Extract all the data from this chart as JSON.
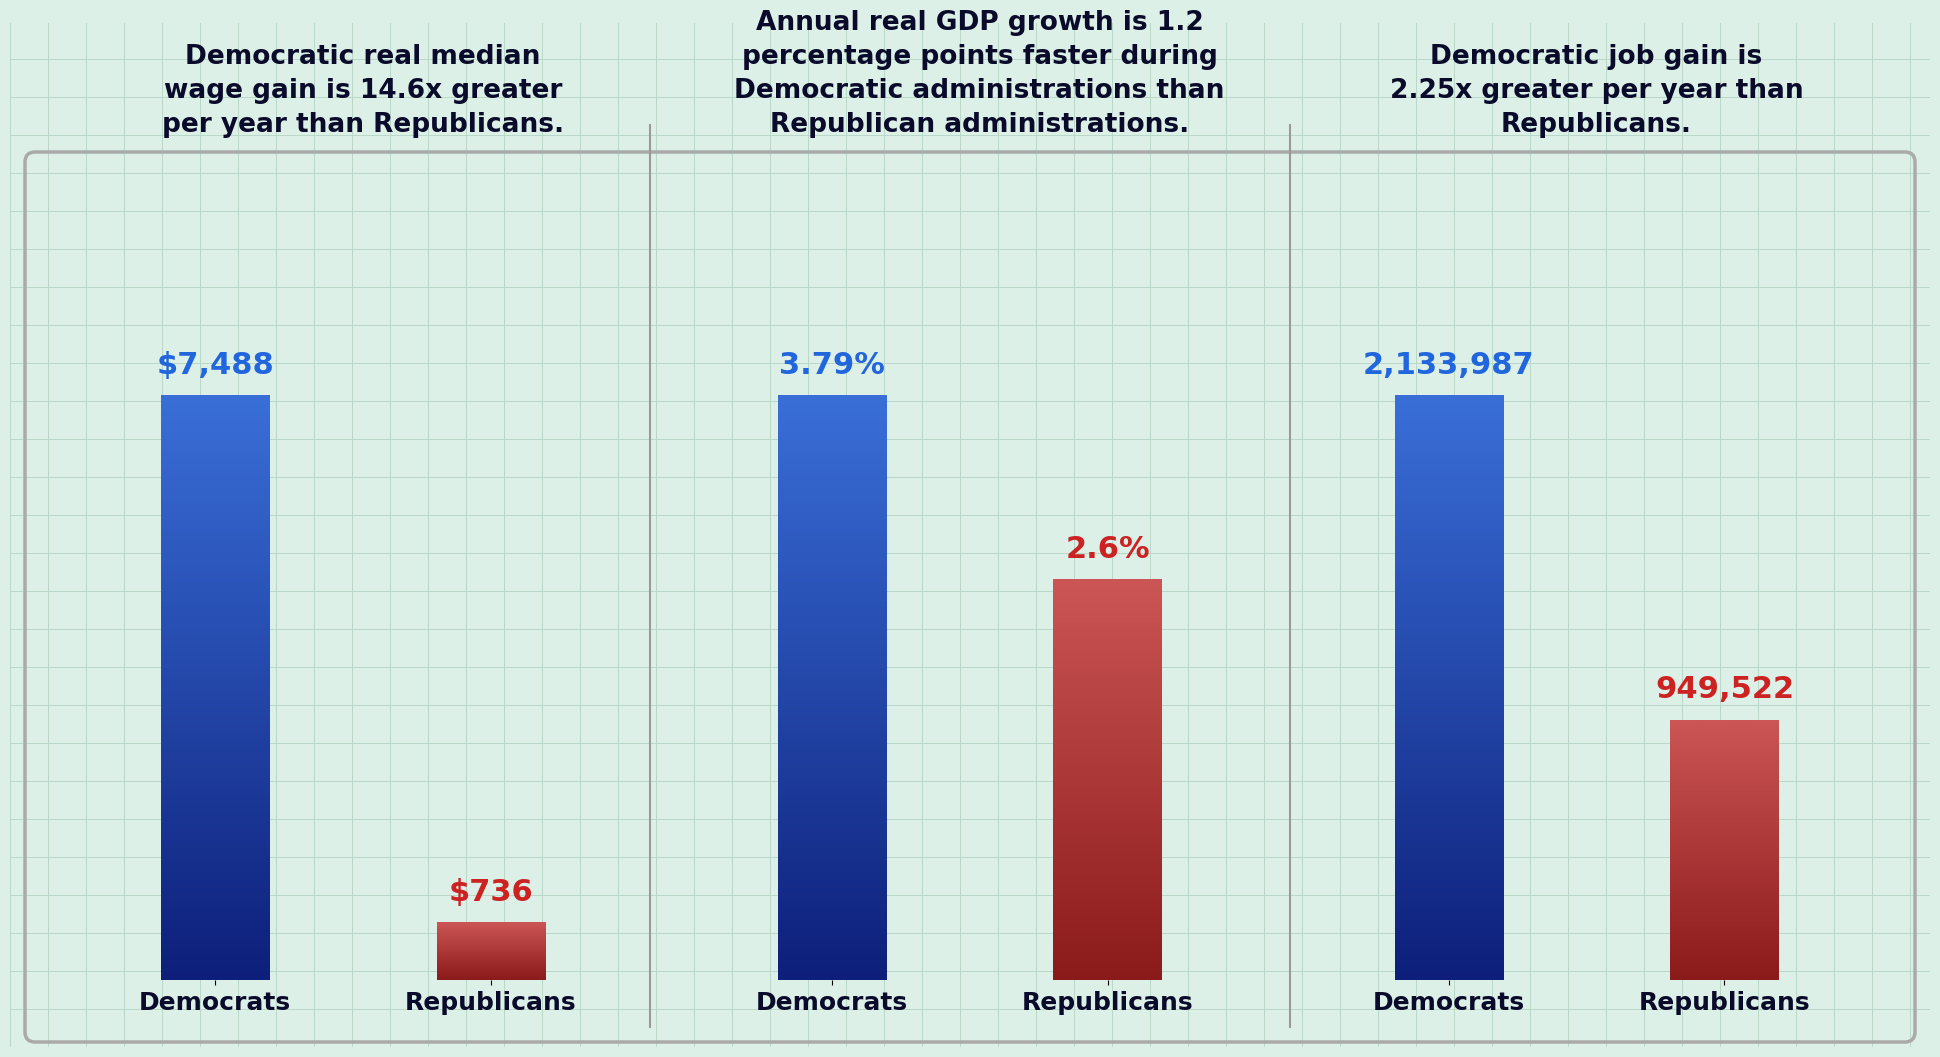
{
  "background_color": "#ddf0e8",
  "grid_color": "#b8d8c8",
  "border_color": "#888888",
  "panels": [
    {
      "title": "Democratic real median\nwage gain is 14.6x greater\nper year than Republicans.",
      "dem_value": 7488,
      "rep_value": 736,
      "dem_label": "$7,488",
      "rep_label": "$736",
      "xlabel_dem": "Democrats",
      "xlabel_rep": "Republicans",
      "dem_color_top": "#3a6fd8",
      "dem_color_bot": "#0d1f7a",
      "rep_color_top": "#cc5555",
      "rep_color_bot": "#8b1a1a",
      "dem_label_color": "#2266dd",
      "rep_label_color": "#cc2222"
    },
    {
      "title": "Annual real GDP growth is 1.2\npercentage points faster during\nDemocratic administrations than\nRepublican administrations.",
      "dem_value": 3.79,
      "rep_value": 2.6,
      "dem_label": "3.79%",
      "rep_label": "2.6%",
      "xlabel_dem": "Democrats",
      "xlabel_rep": "Republicans",
      "dem_color_top": "#3a6fd8",
      "dem_color_bot": "#0d1f7a",
      "rep_color_top": "#cc5555",
      "rep_color_bot": "#8b1a1a",
      "dem_label_color": "#2266dd",
      "rep_label_color": "#cc2222"
    },
    {
      "title": "Democratic job gain is\n2.25x greater per year than\nRepublicans.",
      "dem_value": 2133987,
      "rep_value": 949522,
      "dem_label": "2,133,987",
      "rep_label": "949,522",
      "xlabel_dem": "Democrats",
      "xlabel_rep": "Republicans",
      "dem_color_top": "#3a6fd8",
      "dem_color_bot": "#0d1f7a",
      "rep_color_top": "#cc5555",
      "rep_color_bot": "#8b1a1a",
      "dem_label_color": "#2266dd",
      "rep_label_color": "#cc2222"
    }
  ],
  "title_fontsize": 19,
  "label_fontsize": 22,
  "xlabel_fontsize": 18,
  "title_color": "#0a0a2a",
  "xlabel_color": "#0a0a2a"
}
